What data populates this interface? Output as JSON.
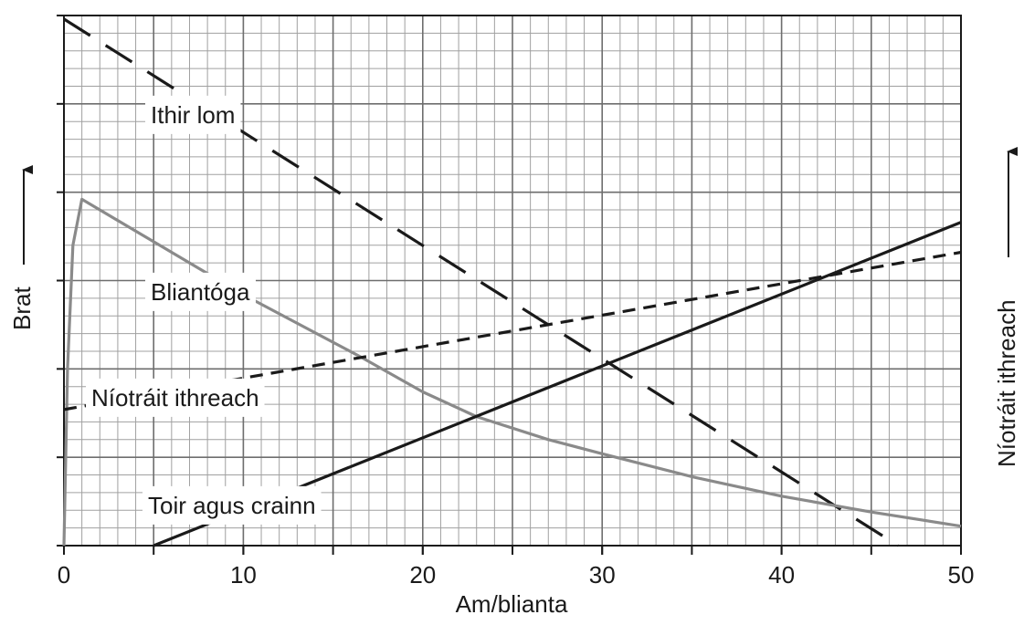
{
  "chart_data": {
    "type": "line",
    "xlabel": "Am/blianta",
    "ylabel": "Brat",
    "y2label": "Níotráit ithreach",
    "xlim": [
      0,
      50
    ],
    "ylim": [
      0,
      30
    ],
    "xticks": [
      0,
      10,
      20,
      30,
      40,
      50
    ],
    "grid": {
      "major": 5,
      "minor": 1
    },
    "series": [
      {
        "name": "Ithir lom",
        "color": "#1a1a1a",
        "dash": "long",
        "x": [
          0,
          46.5
        ],
        "values": [
          29.8,
          0
        ]
      },
      {
        "name": "Bliantóga",
        "color": "#8a8a8a",
        "dash": "solid",
        "x": [
          0,
          0.2,
          0.5,
          1,
          5,
          10,
          16.5,
          20,
          23,
          27,
          30,
          35,
          40,
          45,
          50
        ],
        "values": [
          0,
          10,
          17,
          19.6,
          17.2,
          14.2,
          10.7,
          8.7,
          7.3,
          6.0,
          5.2,
          3.9,
          2.8,
          1.9,
          1.1
        ]
      },
      {
        "name": "Níotráit ithreach",
        "color": "#1a1a1a",
        "dash": "short",
        "x": [
          0,
          50
        ],
        "values": [
          7.7,
          16.6
        ]
      },
      {
        "name": "Toir agus crainn",
        "color": "#1a1a1a",
        "dash": "solid",
        "x": [
          5,
          50
        ],
        "values": [
          0,
          18.3
        ]
      }
    ]
  }
}
